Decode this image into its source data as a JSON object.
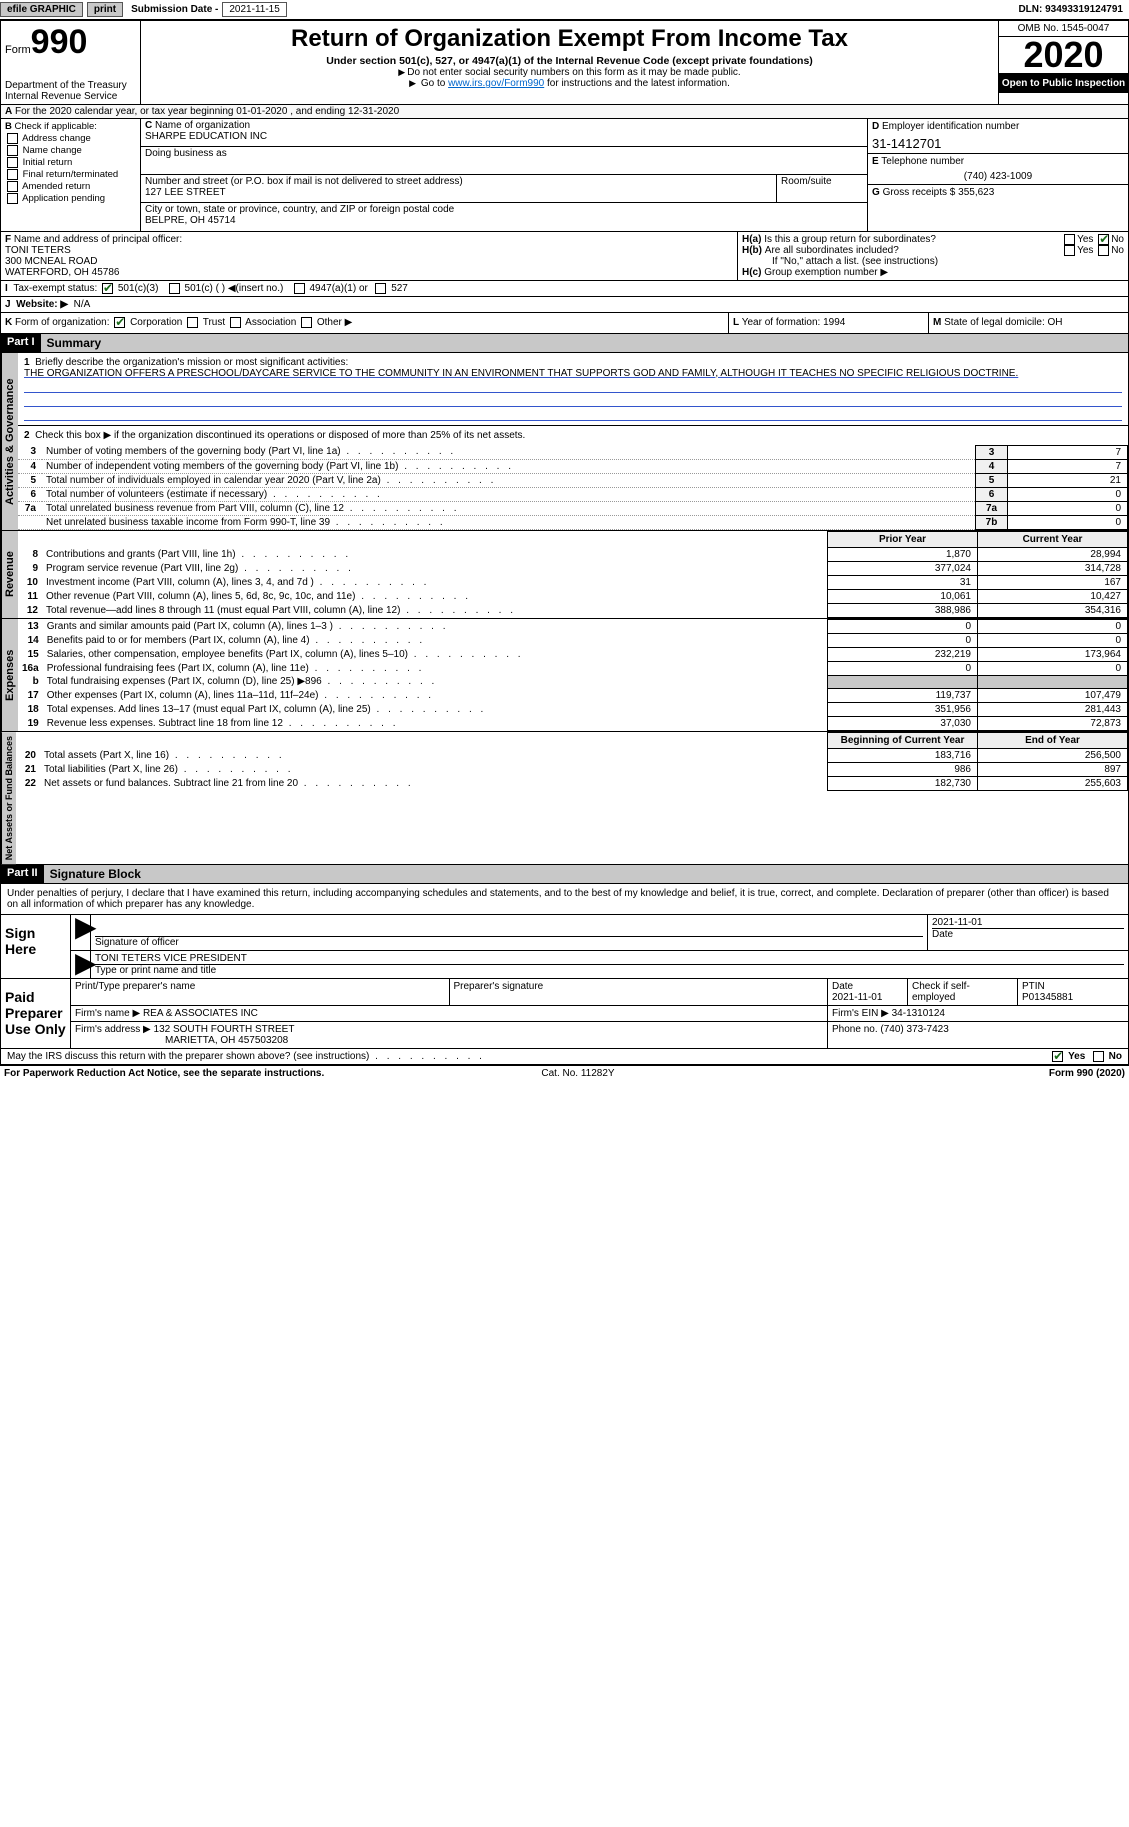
{
  "topbar": {
    "efile_label": "efile GRAPHIC",
    "print_btn": "print",
    "submission_label": "Submission Date -",
    "submission_date": "2021-11-15",
    "dln_label": "DLN:",
    "dln": "93493319124791"
  },
  "header": {
    "form_word": "Form",
    "form_num": "990",
    "dept": "Department of the Treasury",
    "irs": "Internal Revenue Service",
    "title": "Return of Organization Exempt From Income Tax",
    "subtitle": "Under section 501(c), 527, or 4947(a)(1) of the Internal Revenue Code (except private foundations)",
    "note1": "Do not enter social security numbers on this form as it may be made public.",
    "note2_pre": "Go to ",
    "note2_link": "www.irs.gov/Form990",
    "note2_post": " for instructions and the latest information.",
    "omb": "OMB No. 1545-0047",
    "year": "2020",
    "open": "Open to Public Inspection"
  },
  "lineA": "For the 2020 calendar year, or tax year beginning 01-01-2020   , and ending 12-31-2020",
  "B": {
    "label": "Check if applicable:",
    "addr": "Address change",
    "name": "Name change",
    "initial": "Initial return",
    "final": "Final return/terminated",
    "amended": "Amended return",
    "pending": "Application pending"
  },
  "C": {
    "name_label": "Name of organization",
    "name": "SHARPE EDUCATION INC",
    "dba_label": "Doing business as",
    "dba": "",
    "street_label": "Number and street (or P.O. box if mail is not delivered to street address)",
    "street": "127 LEE STREET",
    "room_label": "Room/suite",
    "room": "",
    "city_label": "City or town, state or province, country, and ZIP or foreign postal code",
    "city": "BELPRE, OH  45714"
  },
  "D": {
    "label": "Employer identification number",
    "value": "31-1412701"
  },
  "E": {
    "label": "Telephone number",
    "value": "(740) 423-1009"
  },
  "G": {
    "label": "Gross receipts $",
    "value": "355,623"
  },
  "F": {
    "label": "Name and address of principal officer:",
    "name": "TONI TETERS",
    "street": "300 MCNEAL ROAD",
    "city": "WATERFORD, OH  45786"
  },
  "H": {
    "a": "Is this a group return for subordinates?",
    "b": "Are all subordinates included?",
    "b_note": "If \"No,\" attach a list. (see instructions)",
    "c": "Group exemption number ▶",
    "yes": "Yes",
    "no": "No"
  },
  "I": {
    "label": "Tax-exempt status:",
    "o1": "501(c)(3)",
    "o2": "501(c) (  ) ◀(insert no.)",
    "o3": "4947(a)(1) or",
    "o4": "527"
  },
  "J": {
    "label": "Website: ▶",
    "value": "N/A"
  },
  "K": {
    "label": "Form of organization:",
    "corp": "Corporation",
    "trust": "Trust",
    "assoc": "Association",
    "other": "Other ▶"
  },
  "L": {
    "label": "Year of formation:",
    "value": "1994"
  },
  "M": {
    "label": "State of legal domicile:",
    "value": "OH"
  },
  "partI": {
    "num": "Part I",
    "title": "Summary"
  },
  "gov": {
    "tab": "Activities & Governance",
    "l1_label": "Briefly describe the organization's mission or most significant activities:",
    "l1_text": "THE ORGANIZATION OFFERS A PRESCHOOL/DAYCARE SERVICE TO THE COMMUNITY IN AN ENVIRONMENT THAT SUPPORTS GOD AND FAMILY, ALTHOUGH IT TEACHES NO SPECIFIC RELIGIOUS DOCTRINE.",
    "l2": "Check this box ▶      if the organization discontinued its operations or disposed of more than 25% of its net assets.",
    "rows": [
      {
        "n": "3",
        "t": "Number of voting members of the governing body (Part VI, line 1a)",
        "box": "3",
        "v": "7"
      },
      {
        "n": "4",
        "t": "Number of independent voting members of the governing body (Part VI, line 1b)",
        "box": "4",
        "v": "7"
      },
      {
        "n": "5",
        "t": "Total number of individuals employed in calendar year 2020 (Part V, line 2a)",
        "box": "5",
        "v": "21"
      },
      {
        "n": "6",
        "t": "Total number of volunteers (estimate if necessary)",
        "box": "6",
        "v": "0"
      },
      {
        "n": "7a",
        "t": "Total unrelated business revenue from Part VIII, column (C), line 12",
        "box": "7a",
        "v": "0"
      },
      {
        "n": "",
        "t": "Net unrelated business taxable income from Form 990-T, line 39",
        "box": "7b",
        "v": "0"
      }
    ]
  },
  "rev": {
    "tab": "Revenue",
    "hdr_py": "Prior Year",
    "hdr_cy": "Current Year",
    "rows": [
      {
        "n": "8",
        "t": "Contributions and grants (Part VIII, line 1h)",
        "py": "1,870",
        "cy": "28,994"
      },
      {
        "n": "9",
        "t": "Program service revenue (Part VIII, line 2g)",
        "py": "377,024",
        "cy": "314,728"
      },
      {
        "n": "10",
        "t": "Investment income (Part VIII, column (A), lines 3, 4, and 7d )",
        "py": "31",
        "cy": "167"
      },
      {
        "n": "11",
        "t": "Other revenue (Part VIII, column (A), lines 5, 6d, 8c, 9c, 10c, and 11e)",
        "py": "10,061",
        "cy": "10,427"
      },
      {
        "n": "12",
        "t": "Total revenue—add lines 8 through 11 (must equal Part VIII, column (A), line 12)",
        "py": "388,986",
        "cy": "354,316"
      }
    ]
  },
  "exp": {
    "tab": "Expenses",
    "rows": [
      {
        "n": "13",
        "t": "Grants and similar amounts paid (Part IX, column (A), lines 1–3 )",
        "py": "0",
        "cy": "0"
      },
      {
        "n": "14",
        "t": "Benefits paid to or for members (Part IX, column (A), line 4)",
        "py": "0",
        "cy": "0"
      },
      {
        "n": "15",
        "t": "Salaries, other compensation, employee benefits (Part IX, column (A), lines 5–10)",
        "py": "232,219",
        "cy": "173,964"
      },
      {
        "n": "16a",
        "t": "Professional fundraising fees (Part IX, column (A), line 11e)",
        "py": "0",
        "cy": "0"
      },
      {
        "n": "b",
        "t": "Total fundraising expenses (Part IX, column (D), line 25) ▶896",
        "py": "grey",
        "cy": "grey"
      },
      {
        "n": "17",
        "t": "Other expenses (Part IX, column (A), lines 11a–11d, 11f–24e)",
        "py": "119,737",
        "cy": "107,479"
      },
      {
        "n": "18",
        "t": "Total expenses. Add lines 13–17 (must equal Part IX, column (A), line 25)",
        "py": "351,956",
        "cy": "281,443"
      },
      {
        "n": "19",
        "t": "Revenue less expenses. Subtract line 18 from line 12",
        "py": "37,030",
        "cy": "72,873"
      }
    ]
  },
  "net": {
    "tab": "Net Assets or Fund Balances",
    "hdr_py": "Beginning of Current Year",
    "hdr_cy": "End of Year",
    "rows": [
      {
        "n": "20",
        "t": "Total assets (Part X, line 16)",
        "py": "183,716",
        "cy": "256,500"
      },
      {
        "n": "21",
        "t": "Total liabilities (Part X, line 26)",
        "py": "986",
        "cy": "897"
      },
      {
        "n": "22",
        "t": "Net assets or fund balances. Subtract line 21 from line 20",
        "py": "182,730",
        "cy": "255,603"
      }
    ]
  },
  "partII": {
    "num": "Part II",
    "title": "Signature Block"
  },
  "sig_decl": "Under penalties of perjury, I declare that I have examined this return, including accompanying schedules and statements, and to the best of my knowledge and belief, it is true, correct, and complete. Declaration of preparer (other than officer) is based on all information of which preparer has any knowledge.",
  "sign": {
    "left": "Sign Here",
    "sig_label": "Signature of officer",
    "date": "2021-11-01",
    "date_label": "Date",
    "name": "TONI TETERS VICE PRESIDENT",
    "name_label": "Type or print name and title"
  },
  "prep": {
    "left1": "Paid",
    "left2": "Preparer",
    "left3": "Use Only",
    "h_name": "Print/Type preparer's name",
    "h_sig": "Preparer's signature",
    "h_date": "Date",
    "date": "2021-11-01",
    "h_check": "Check        if self-employed",
    "h_ptin": "PTIN",
    "ptin": "P01345881",
    "firm_name_l": "Firm's name   ▶",
    "firm_name": "REA & ASSOCIATES INC",
    "firm_ein_l": "Firm's EIN ▶",
    "firm_ein": "34-1310124",
    "firm_addr_l": "Firm's address ▶",
    "firm_addr1": "132 SOUTH FOURTH STREET",
    "firm_addr2": "MARIETTA, OH  457503208",
    "phone_l": "Phone no.",
    "phone": "(740) 373-7423"
  },
  "may_irs": "May the IRS discuss this return with the preparer shown above? (see instructions)",
  "footer": {
    "left": "For Paperwork Reduction Act Notice, see the separate instructions.",
    "mid": "Cat. No. 11282Y",
    "right": "Form 990 (2020)"
  }
}
